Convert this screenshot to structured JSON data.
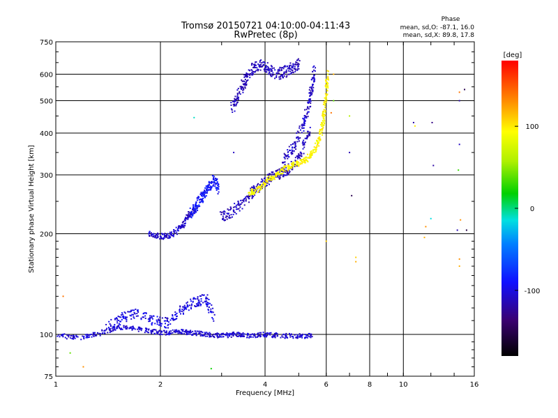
{
  "chart_data": {
    "type": "scatter",
    "title": "Tromsø 20150721 04:10:00-04:11:43",
    "subtitle": "RwPretec (8p)",
    "xlabel": "Frequency [MHz]",
    "ylabel": "Stationary phase Virtual Height [km]",
    "xscale": "log",
    "yscale": "log",
    "xlim": [
      1,
      16
    ],
    "ylim": [
      75,
      750
    ],
    "xticks": [
      1,
      2,
      4,
      6,
      8,
      10,
      16
    ],
    "xtick_labels": [
      "1",
      "2",
      "4",
      "6",
      "8",
      "10",
      "16"
    ],
    "yticks": [
      75,
      100,
      200,
      300,
      400,
      500,
      600,
      750
    ],
    "ytick_labels": [
      "75",
      "100",
      "200",
      "300",
      "400",
      "500",
      "600",
      "750"
    ],
    "grid": true,
    "stats": {
      "heading": "Phase",
      "o_line": "mean, sd,O: -87.1, 16.0",
      "x_line": "mean, sd,X:  89.8, 17.8"
    },
    "colorbar": {
      "label": "[deg]",
      "range": [
        -180,
        180
      ],
      "ticks": [
        100,
        0,
        -100
      ],
      "tick_labels": [
        "100",
        "0",
        "-100"
      ]
    },
    "clusters": [
      {
        "name": "E-region",
        "phase": -105,
        "jitter": 10,
        "f": [
          1.0,
          1.2,
          1.35,
          1.5,
          1.7,
          1.9,
          2.1,
          2.3,
          2.5,
          2.75,
          3.0,
          3.3,
          3.6,
          4.0,
          4.5,
          5.0,
          5.5
        ],
        "h": [
          99,
          98,
          101,
          105,
          104,
          102,
          101,
          102,
          101,
          100,
          99,
          100,
          99,
          100,
          99,
          99,
          99
        ],
        "spread": 0.016
      },
      {
        "name": "Es-bump",
        "phase": -100,
        "jitter": 12,
        "f": [
          1.4,
          1.55,
          1.7,
          1.9,
          2.1,
          2.3,
          2.5,
          2.7,
          2.85
        ],
        "h": [
          105,
          112,
          115,
          110,
          108,
          118,
          125,
          128,
          112
        ],
        "spread": 0.035
      },
      {
        "name": "F1-trace-lower",
        "phase": -108,
        "jitter": 12,
        "f": [
          1.85,
          2.0,
          2.15,
          2.3,
          2.42,
          2.55
        ],
        "h": [
          200,
          196,
          198,
          210,
          228,
          238
        ],
        "spread": 0.02
      },
      {
        "name": "F1-cusp",
        "phase": -88,
        "jitter": 14,
        "f": [
          2.45,
          2.55,
          2.65,
          2.75,
          2.85,
          2.95
        ],
        "h": [
          230,
          245,
          260,
          275,
          290,
          270
        ],
        "spread": 0.035
      },
      {
        "name": "F2-O-lower",
        "phase": -112,
        "jitter": 12,
        "f": [
          3.0,
          3.2,
          3.45,
          3.7,
          3.95,
          4.2,
          4.5,
          4.8,
          5.1,
          5.35
        ],
        "h": [
          225,
          232,
          248,
          268,
          285,
          296,
          305,
          318,
          350,
          405
        ],
        "spread": 0.035
      },
      {
        "name": "F2-O-upper",
        "phase": -108,
        "jitter": 12,
        "f": [
          4.5,
          4.8,
          5.1,
          5.3,
          5.45,
          5.55
        ],
        "h": [
          330,
          360,
          410,
          470,
          540,
          620
        ],
        "spread": 0.035
      },
      {
        "name": "F2-X-trace",
        "phase": 95,
        "jitter": 12,
        "f": [
          3.6,
          3.85,
          4.1,
          4.4,
          4.7,
          5.0,
          5.3,
          5.55,
          5.75,
          5.9,
          6.0,
          6.05
        ],
        "h": [
          265,
          272,
          290,
          305,
          318,
          325,
          335,
          355,
          390,
          440,
          520,
          610
        ],
        "spread": 0.02
      },
      {
        "name": "Spread-F-high",
        "phase": -112,
        "jitter": 10,
        "f": [
          3.2,
          3.35,
          3.5,
          3.65,
          3.85,
          4.05,
          4.3,
          4.55,
          4.8,
          5.0
        ],
        "h": [
          470,
          520,
          570,
          620,
          640,
          625,
          600,
          610,
          630,
          650
        ],
        "spread": 0.04
      }
    ],
    "outliers": [
      {
        "f": 1.1,
        "h": 88,
        "phase": 40
      },
      {
        "f": 1.2,
        "h": 80,
        "phase": 130
      },
      {
        "f": 1.05,
        "h": 130,
        "phase": 140
      },
      {
        "f": 2.8,
        "h": 79,
        "phase": 20
      },
      {
        "f": 2.5,
        "h": 445,
        "phase": -10
      },
      {
        "f": 3.25,
        "h": 350,
        "phase": -110
      },
      {
        "f": 6.3,
        "h": 600,
        "phase": 120
      },
      {
        "f": 6.3,
        "h": 500,
        "phase": 40
      },
      {
        "f": 6.2,
        "h": 460,
        "phase": 140
      },
      {
        "f": 7.0,
        "h": 350,
        "phase": -115
      },
      {
        "f": 7.0,
        "h": 450,
        "phase": 60
      },
      {
        "f": 7.1,
        "h": 260,
        "phase": -150
      },
      {
        "f": 7.3,
        "h": 170,
        "phase": 110
      },
      {
        "f": 7.3,
        "h": 165,
        "phase": 120
      },
      {
        "f": 10.7,
        "h": 430,
        "phase": -120
      },
      {
        "f": 10.8,
        "h": 420,
        "phase": 100
      },
      {
        "f": 11.6,
        "h": 210,
        "phase": 130
      },
      {
        "f": 11.5,
        "h": 195,
        "phase": 120
      },
      {
        "f": 12.2,
        "h": 320,
        "phase": -120
      },
      {
        "f": 12.1,
        "h": 430,
        "phase": -130
      },
      {
        "f": 12.0,
        "h": 222,
        "phase": -15
      },
      {
        "f": 14.5,
        "h": 530,
        "phase": 140
      },
      {
        "f": 14.5,
        "h": 500,
        "phase": -120
      },
      {
        "f": 14.5,
        "h": 370,
        "phase": -110
      },
      {
        "f": 14.4,
        "h": 310,
        "phase": 30
      },
      {
        "f": 14.6,
        "h": 220,
        "phase": 130
      },
      {
        "f": 14.3,
        "h": 205,
        "phase": -115
      },
      {
        "f": 15.2,
        "h": 205,
        "phase": -155
      },
      {
        "f": 14.5,
        "h": 168,
        "phase": 130
      },
      {
        "f": 14.5,
        "h": 160,
        "phase": 120
      },
      {
        "f": 15.0,
        "h": 540,
        "phase": -150
      },
      {
        "f": 6.0,
        "h": 190,
        "phase": 110
      }
    ]
  }
}
